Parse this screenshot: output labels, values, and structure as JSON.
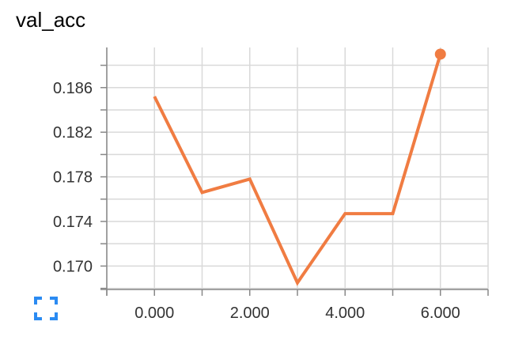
{
  "chart_data": {
    "type": "line",
    "title": "val_acc",
    "xlabel": "",
    "ylabel": "",
    "x": [
      0,
      1,
      2,
      3,
      4,
      5,
      6
    ],
    "series": [
      {
        "values": [
          0.1852,
          0.1766,
          0.1778,
          0.1685,
          0.1747,
          0.1747,
          0.189
        ]
      }
    ],
    "xlim": [
      -1,
      7
    ],
    "ylim": [
      0.1679,
      0.1896
    ],
    "x_ticks": [
      0,
      2,
      4,
      6
    ],
    "x_tick_labels": [
      "0.000",
      "2.000",
      "4.000",
      "6.000"
    ],
    "y_ticks": [
      0.17,
      0.174,
      0.178,
      0.182,
      0.186
    ],
    "y_tick_labels": [
      "0.170",
      "0.174",
      "0.178",
      "0.182",
      "0.186"
    ],
    "grid": true,
    "legend": "none",
    "last_point_marker": true,
    "colors": {
      "line": "#f07c42",
      "grid": "#d9d9d9",
      "axis": "#888888"
    }
  },
  "controls": {
    "expand_icon": "expand-icon",
    "expand_color": "#2b8bf2"
  }
}
